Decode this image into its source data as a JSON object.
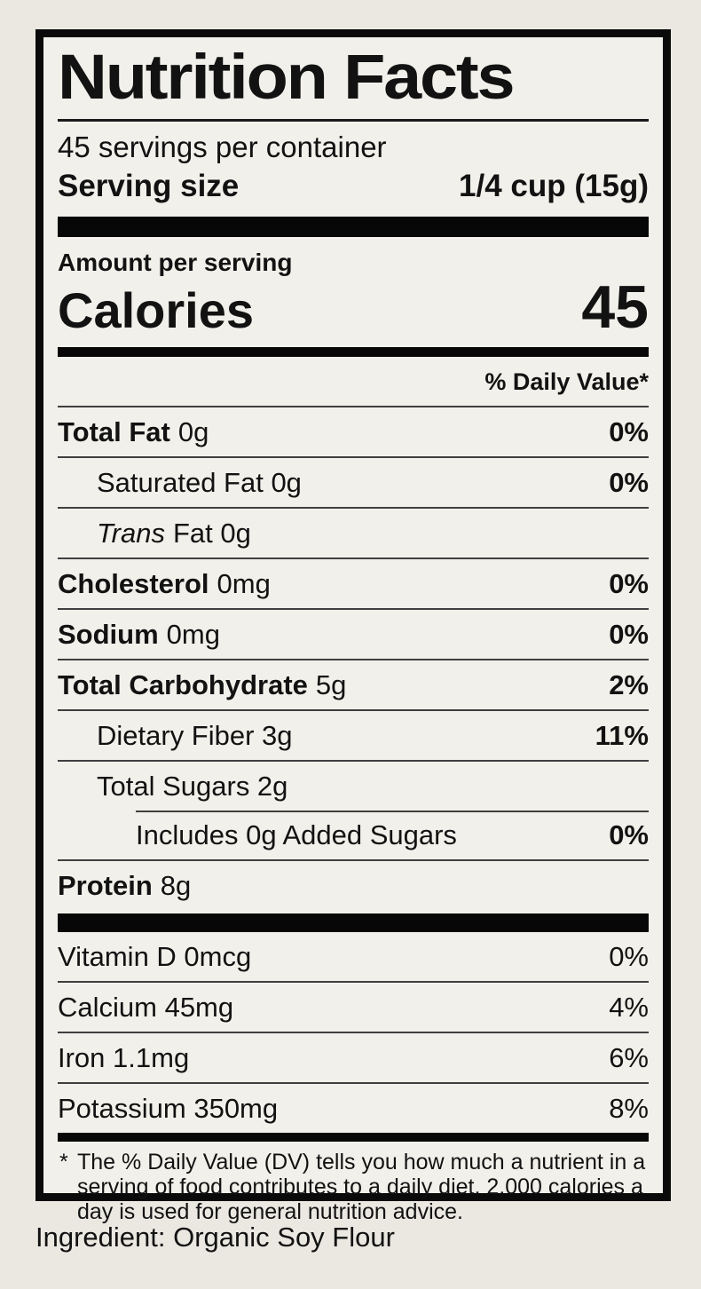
{
  "label": {
    "title": "Nutrition Facts",
    "servings_per_container": "45 servings per container",
    "serving_size_label": "Serving size",
    "serving_size_value": "1/4 cup (15g)",
    "amount_per_serving": "Amount per serving",
    "calories_label": "Calories",
    "calories_value": "45",
    "daily_value_header": "% Daily Value*",
    "nutrient_rows": [
      {
        "name": "Total Fat",
        "amount": "0g",
        "dv": "0%"
      },
      {
        "name": "Saturated Fat 0g",
        "amount": "",
        "dv": "0%"
      },
      {
        "name": "Trans",
        "amount": "Fat 0g",
        "dv": ""
      },
      {
        "name": "Cholesterol",
        "amount": "0mg",
        "dv": "0%"
      },
      {
        "name": "Sodium",
        "amount": "0mg",
        "dv": "0%"
      },
      {
        "name": "Total Carbohydrate",
        "amount": "5g",
        "dv": "2%"
      },
      {
        "name": "Dietary Fiber 3g",
        "amount": "",
        "dv": "11%"
      },
      {
        "name": "Total Sugars 2g",
        "amount": "",
        "dv": ""
      },
      {
        "name": "Includes 0g Added Sugars",
        "amount": "",
        "dv": "0%"
      },
      {
        "name": "Protein",
        "amount": "8g",
        "dv": ""
      }
    ],
    "vitamin_rows": [
      {
        "name": "Vitamin D 0mcg",
        "dv": "0%"
      },
      {
        "name": "Calcium 45mg",
        "dv": "4%"
      },
      {
        "name": "Iron 1.1mg",
        "dv": "6%"
      },
      {
        "name": "Potassium 350mg",
        "dv": "8%"
      }
    ],
    "footnote_marker": "*",
    "footnote_text": "The % Daily Value (DV) tells you how much a nutrient in a serving of food contributes to a daily diet. 2,000 calories a day is used for general nutrition advice."
  },
  "ingredient_line": "Ingredient: Organic Soy Flour",
  "colors": {
    "page_background": "#ebe8e2",
    "label_background": "#f2f0ea",
    "ink": "#121212"
  }
}
